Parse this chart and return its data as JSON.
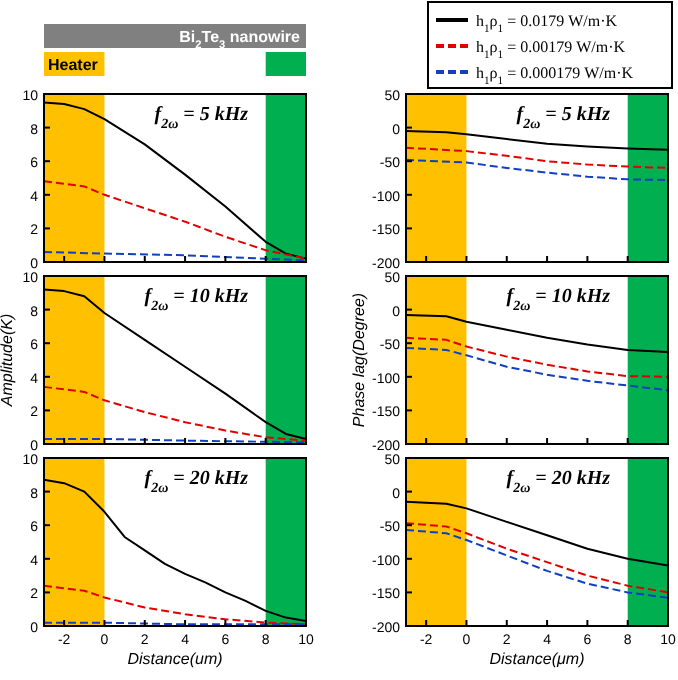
{
  "chart_data": [
    {
      "type": "line",
      "title": "f$_{2ω}$ = 5 kHz",
      "annotations": [
        "Bi$_{2}$Te$_{3}$ nanowire"
      ],
      "xlim": [
        -3,
        10
      ],
      "xticks": [
        -2,
        0,
        2,
        4,
        6,
        8,
        10
      ],
      "ylim": [
        0,
        10
      ],
      "yticks": [
        0,
        2,
        4,
        6,
        8,
        10
      ],
      "tick_labels": "y",
      "bands": [
        {
          "axis": "x",
          "from": -3,
          "to": 0,
          "label": "Heater",
          "color": "#ffc000"
        },
        {
          "axis": "x",
          "from": 8,
          "to": 10,
          "label": null,
          "color": "#00b050"
        }
      ],
      "series": [
        {
          "color": "#000000",
          "line_style": "solid",
          "x": [
            -3,
            -2,
            -1,
            0,
            2,
            4,
            6,
            8,
            9,
            10
          ],
          "values": [
            9.5,
            9.4,
            9.1,
            8.5,
            7.0,
            5.2,
            3.3,
            1.2,
            0.5,
            0.2
          ]
        },
        {
          "color": "#e00000",
          "line_style": "dashed",
          "x": [
            -3,
            -1,
            0,
            2,
            4,
            6,
            8,
            10
          ],
          "values": [
            4.8,
            4.5,
            4.0,
            3.2,
            2.4,
            1.5,
            0.7,
            0.2
          ]
        },
        {
          "color": "#1040c0",
          "line_style": "dashed",
          "x": [
            -3,
            0,
            4,
            8,
            10
          ],
          "values": [
            0.6,
            0.5,
            0.4,
            0.2,
            0.1
          ]
        }
      ]
    },
    {
      "type": "line",
      "title": "f$_{2ω}$ = 5 kHz",
      "legend": "top",
      "xlim": [
        -3,
        10
      ],
      "xticks": [
        -2,
        0,
        2,
        4,
        6,
        8,
        10
      ],
      "ylim": [
        -200,
        50
      ],
      "yticks": [
        -200,
        -150,
        -100,
        -50,
        0,
        50
      ],
      "tick_labels": "y",
      "bands": [
        {
          "axis": "x",
          "from": -3,
          "to": 0,
          "color": "#ffc000"
        },
        {
          "axis": "x",
          "from": 8,
          "to": 10,
          "color": "#00b050"
        }
      ],
      "series": [
        {
          "name": "h$_{1}$ρ$_{1}$ = 0.0179 W/m·K",
          "color": "#000000",
          "line_style": "solid",
          "x": [
            -3,
            -1,
            0,
            2,
            4,
            6,
            8,
            10
          ],
          "values": [
            -5,
            -7,
            -10,
            -17,
            -24,
            -28,
            -31,
            -33
          ]
        },
        {
          "name": "h$_{1}$ρ$_{1}$ = 0.00179 W/m·K",
          "color": "#e00000",
          "line_style": "dashed",
          "x": [
            -3,
            0,
            2,
            4,
            6,
            8,
            10
          ],
          "values": [
            -30,
            -35,
            -42,
            -50,
            -55,
            -58,
            -60
          ]
        },
        {
          "name": "h$_{1}$ρ$_{1}$ = 0.000179 W/m·K",
          "color": "#1040c0",
          "line_style": "dashed",
          "x": [
            -3,
            0,
            2,
            4,
            6,
            8,
            10
          ],
          "values": [
            -48,
            -52,
            -60,
            -67,
            -73,
            -77,
            -78
          ]
        }
      ]
    },
    {
      "type": "line",
      "title": "f$_{2ω}$ = 10 kHz",
      "ylabel": "Amplitude(K)",
      "xlim": [
        -3,
        10
      ],
      "xticks": [
        -2,
        0,
        2,
        4,
        6,
        8,
        10
      ],
      "ylim": [
        0,
        10
      ],
      "yticks": [
        0,
        2,
        4,
        6,
        8,
        10
      ],
      "tick_labels": "y",
      "bands": [
        {
          "axis": "x",
          "from": -3,
          "to": 0,
          "color": "#ffc000"
        },
        {
          "axis": "x",
          "from": 8,
          "to": 10,
          "color": "#00b050"
        }
      ],
      "series": [
        {
          "color": "#000000",
          "line_style": "solid",
          "x": [
            -3,
            -2,
            -1,
            0,
            2,
            4,
            6,
            8,
            9,
            10
          ],
          "values": [
            9.2,
            9.1,
            8.8,
            7.8,
            6.2,
            4.6,
            3.0,
            1.3,
            0.6,
            0.3
          ]
        },
        {
          "color": "#e00000",
          "line_style": "dashed",
          "x": [
            -3,
            -1,
            0,
            2,
            4,
            6,
            8,
            10
          ],
          "values": [
            3.4,
            3.1,
            2.6,
            1.9,
            1.3,
            0.8,
            0.4,
            0.2
          ]
        },
        {
          "color": "#1040c0",
          "line_style": "dashed",
          "x": [
            -3,
            0,
            4,
            10
          ],
          "values": [
            0.3,
            0.3,
            0.2,
            0.1
          ]
        }
      ]
    },
    {
      "type": "line",
      "title": "f$_{2ω}$ = 10 kHz",
      "ylabel": "Phase lag(Degree)",
      "xlim": [
        -3,
        10
      ],
      "xticks": [
        -2,
        0,
        2,
        4,
        6,
        8,
        10
      ],
      "ylim": [
        -200,
        50
      ],
      "yticks": [
        -200,
        -150,
        -100,
        -50,
        0,
        50
      ],
      "tick_labels": "y",
      "bands": [
        {
          "axis": "x",
          "from": -3,
          "to": 0,
          "color": "#ffc000"
        },
        {
          "axis": "x",
          "from": 8,
          "to": 10,
          "color": "#00b050"
        }
      ],
      "series": [
        {
          "color": "#000000",
          "line_style": "solid",
          "x": [
            -3,
            -1,
            0,
            2,
            4,
            6,
            8,
            10
          ],
          "values": [
            -8,
            -10,
            -18,
            -30,
            -42,
            -52,
            -60,
            -63
          ]
        },
        {
          "color": "#e00000",
          "line_style": "dashed",
          "x": [
            -3,
            -1,
            0,
            2,
            4,
            6,
            8,
            10
          ],
          "values": [
            -42,
            -45,
            -55,
            -70,
            -82,
            -92,
            -99,
            -100
          ]
        },
        {
          "color": "#1040c0",
          "line_style": "dashed",
          "x": [
            -3,
            -1,
            0,
            2,
            4,
            6,
            8,
            10
          ],
          "values": [
            -57,
            -60,
            -68,
            -85,
            -97,
            -106,
            -113,
            -120
          ]
        }
      ]
    },
    {
      "type": "line",
      "title": "f$_{2ω}$ = 20 kHz",
      "xlabel": "Distance(um)",
      "xlim": [
        -3,
        10
      ],
      "xticks": [
        -2,
        0,
        2,
        4,
        6,
        8,
        10
      ],
      "ylim": [
        0,
        10
      ],
      "yticks": [
        0,
        2,
        4,
        6,
        8,
        10
      ],
      "bands": [
        {
          "axis": "x",
          "from": -3,
          "to": 0,
          "color": "#ffc000"
        },
        {
          "axis": "x",
          "from": 8,
          "to": 10,
          "color": "#00b050"
        }
      ],
      "series": [
        {
          "color": "#000000",
          "line_style": "solid",
          "x": [
            -3,
            -2,
            -1,
            0,
            1,
            2,
            3,
            4,
            5,
            6,
            7,
            8,
            9,
            10
          ],
          "values": [
            8.7,
            8.5,
            8.0,
            6.8,
            5.3,
            4.5,
            3.7,
            3.1,
            2.6,
            2.0,
            1.5,
            0.9,
            0.5,
            0.3
          ]
        },
        {
          "color": "#e00000",
          "line_style": "dashed",
          "x": [
            -3,
            -1,
            0,
            2,
            4,
            6,
            8,
            10
          ],
          "values": [
            2.4,
            2.1,
            1.7,
            1.1,
            0.7,
            0.4,
            0.2,
            0.1
          ]
        },
        {
          "color": "#1040c0",
          "line_style": "dashed",
          "x": [
            -3,
            0,
            4,
            10
          ],
          "values": [
            0.2,
            0.2,
            0.1,
            0.1
          ]
        }
      ]
    },
    {
      "type": "line",
      "title": "f$_{2ω}$ = 20 kHz",
      "xlabel": "Distance(μm)",
      "xlim": [
        -3,
        10
      ],
      "xticks": [
        -2,
        0,
        2,
        4,
        6,
        8,
        10
      ],
      "ylim": [
        -200,
        50
      ],
      "yticks": [
        -200,
        -150,
        -100,
        -50,
        0,
        50
      ],
      "bands": [
        {
          "axis": "x",
          "from": -3,
          "to": 0,
          "color": "#ffc000"
        },
        {
          "axis": "x",
          "from": 8,
          "to": 10,
          "color": "#00b050"
        }
      ],
      "series": [
        {
          "color": "#000000",
          "line_style": "solid",
          "x": [
            -3,
            -1,
            0,
            2,
            4,
            6,
            8,
            10
          ],
          "values": [
            -15,
            -18,
            -25,
            -45,
            -65,
            -85,
            -100,
            -110
          ]
        },
        {
          "color": "#e00000",
          "line_style": "dashed",
          "x": [
            -3,
            -1,
            0,
            2,
            4,
            6,
            8,
            10
          ],
          "values": [
            -47,
            -52,
            -62,
            -85,
            -105,
            -125,
            -140,
            -150
          ]
        },
        {
          "color": "#1040c0",
          "line_style": "dashed",
          "x": [
            -3,
            -1,
            0,
            2,
            4,
            6,
            8,
            10
          ],
          "values": [
            -57,
            -62,
            -72,
            -95,
            -118,
            -137,
            -150,
            -158
          ]
        }
      ]
    }
  ]
}
